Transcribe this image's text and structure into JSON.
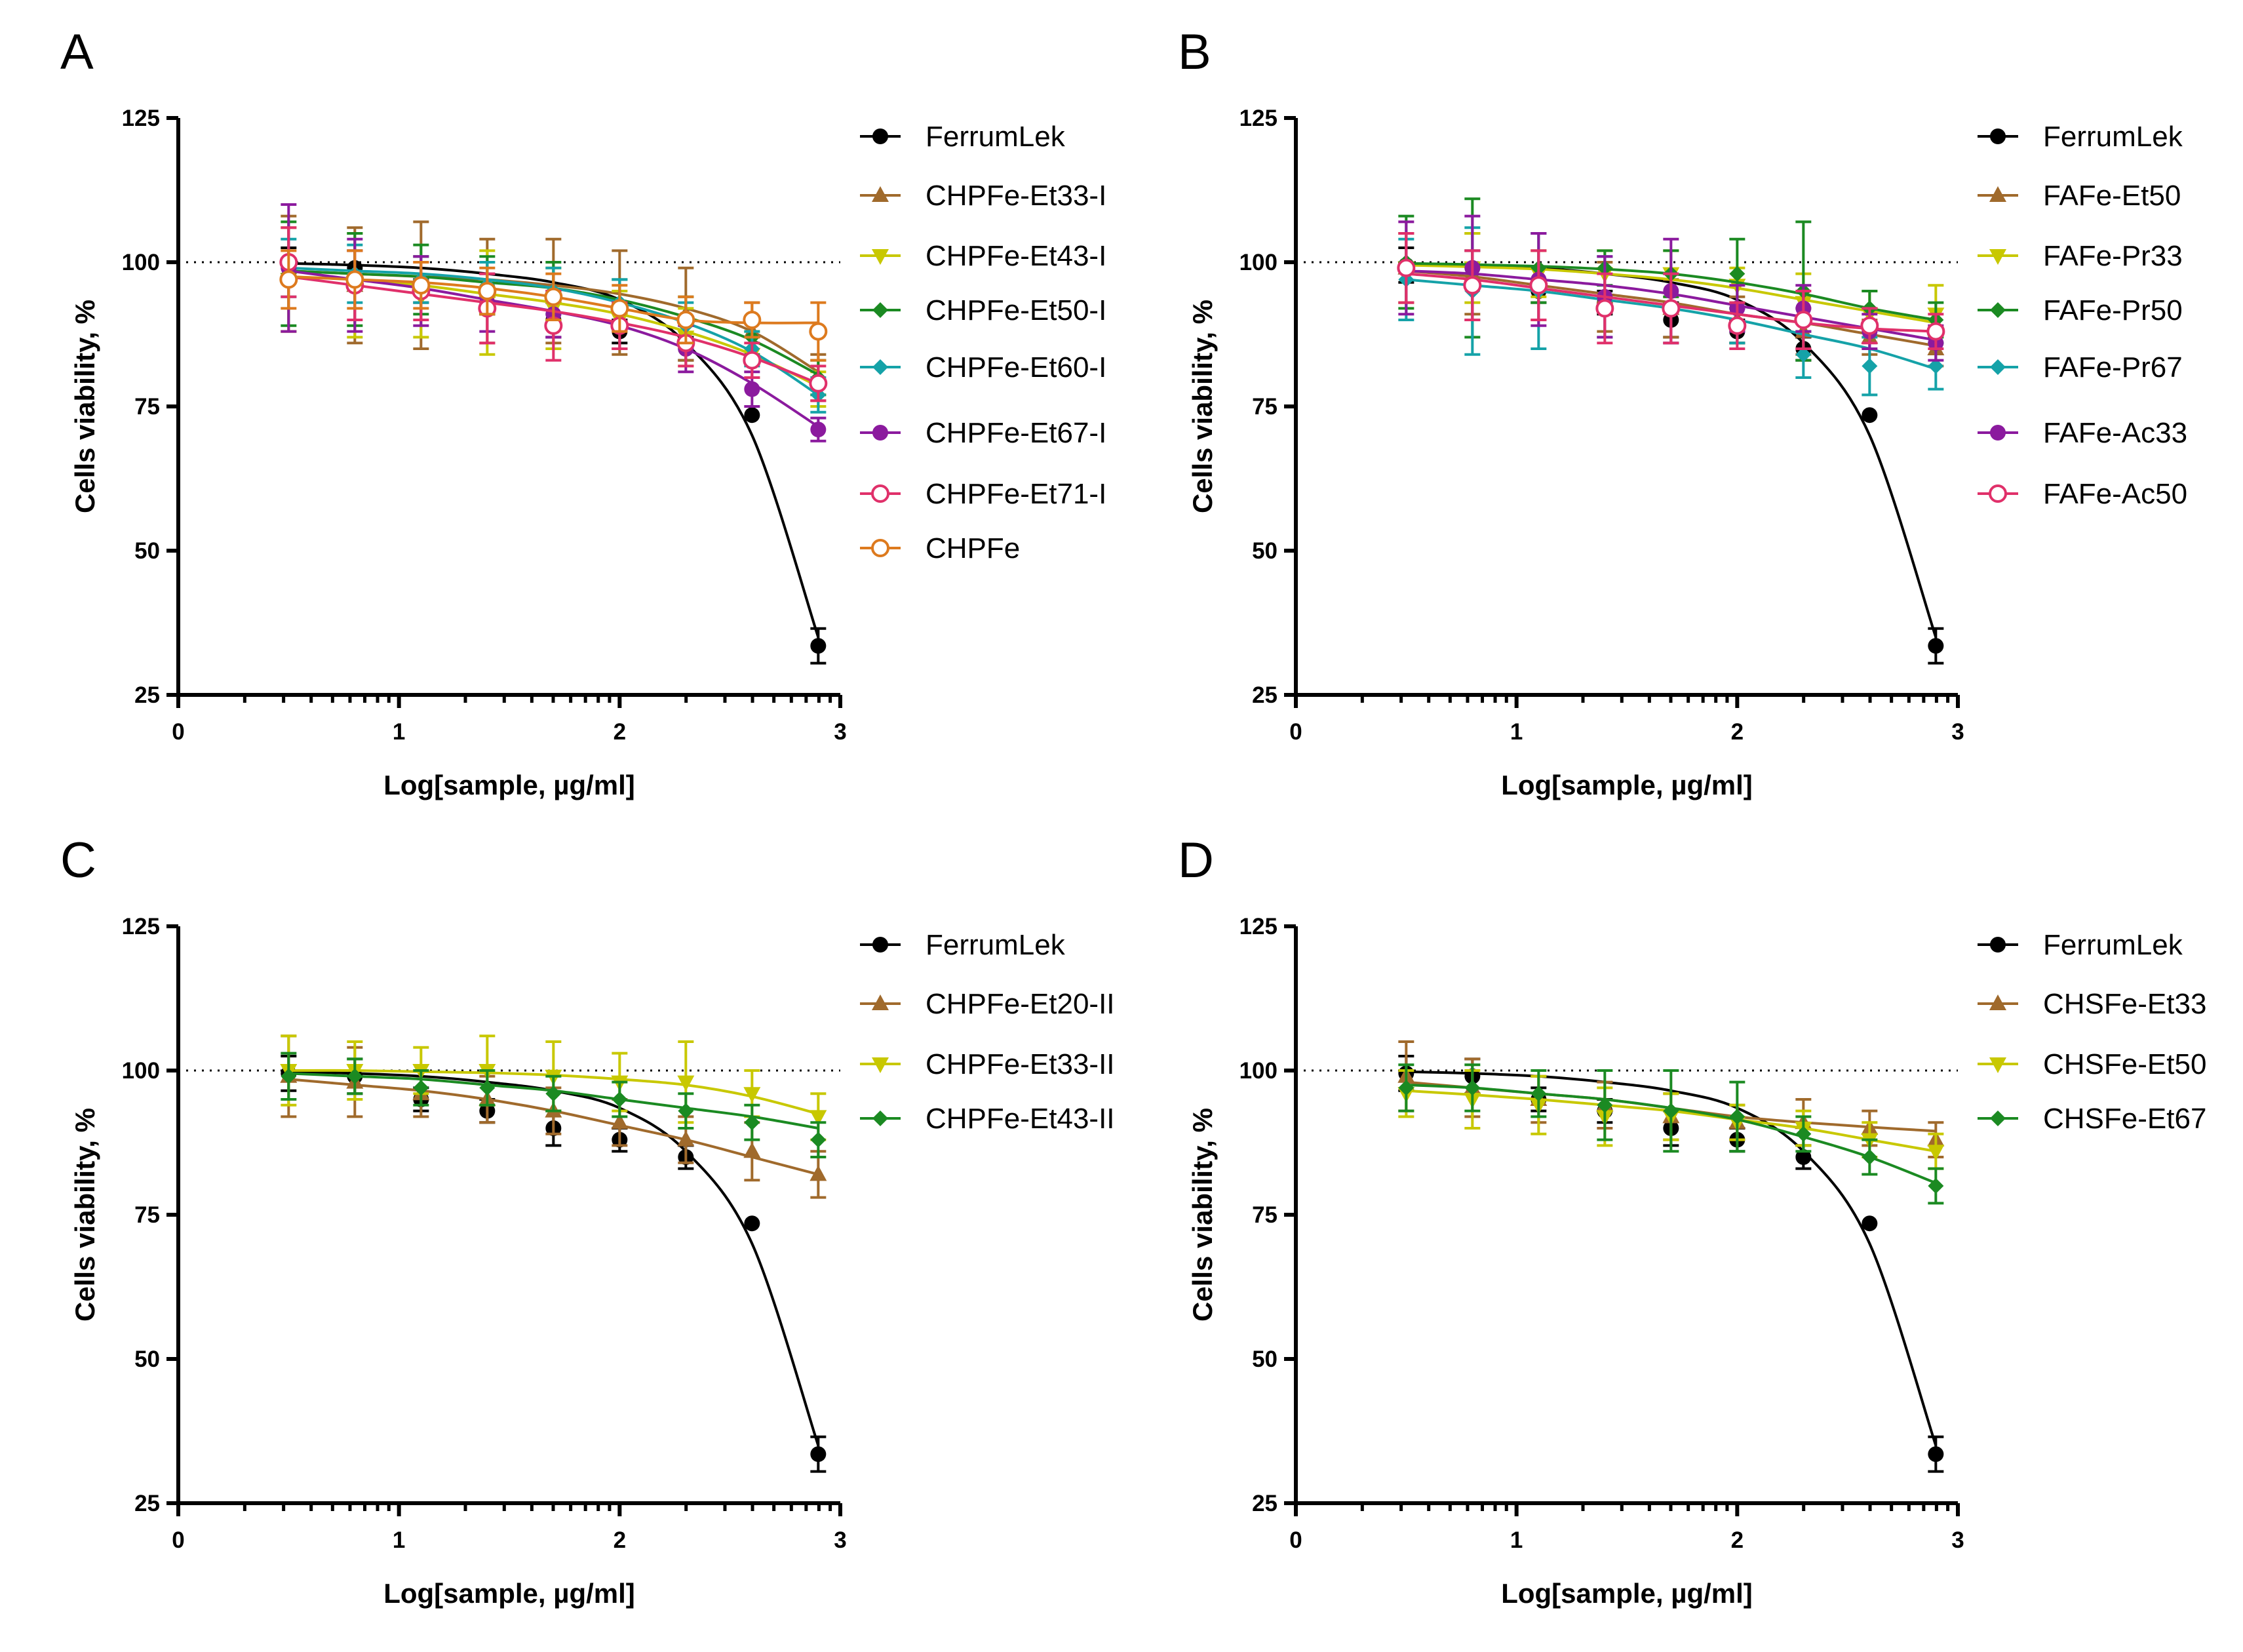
{
  "figure": {
    "background": "#ffffff",
    "panels": [
      {
        "letter": "A",
        "legend": [
          "FerrumLek",
          "CHPFe-Et33-I",
          "CHPFe-Et43-I",
          "CHPFe-Et50-I",
          "CHPFe-Et60-I",
          "CHPFe-Et67-I",
          "CHPFe-Et71-I",
          "CHPFe"
        ]
      },
      {
        "letter": "B",
        "legend": [
          "FerrumLek",
          "FAFe-Et50",
          "FAFe-Pr33",
          "FAFe-Pr50",
          "FAFe-Pr67",
          "FAFe-Ac33",
          "FAFe-Ac50"
        ]
      },
      {
        "letter": "C",
        "legend": [
          "FerrumLek",
          "CHPFe-Et20-II",
          "CHPFe-Et33-II",
          "CHPFe-Et43-II"
        ]
      },
      {
        "letter": "D",
        "legend": [
          "FerrumLek",
          "CHSFe-Et33",
          "CHSFe-Et50",
          "CHSFe-Et67"
        ]
      }
    ]
  },
  "chart_data": [
    {
      "type": "scatter",
      "panel": "A",
      "xlabel": "Log[sample, µg/ml]",
      "ylabel": "Cells viability, %",
      "xlim": [
        0,
        3
      ],
      "ylim": [
        25,
        125
      ],
      "xticks": [
        0,
        1,
        2,
        3
      ],
      "yticks": [
        25,
        50,
        75,
        100,
        125
      ],
      "reference_line": 100,
      "legend_position": "right",
      "x": [
        0.5,
        0.8,
        1.1,
        1.4,
        1.7,
        2.0,
        2.3,
        2.6,
        2.9
      ],
      "series": [
        {
          "name": "FerrumLek",
          "color": "#000000",
          "marker": "circle",
          "values": [
            99.5,
            99,
            95,
            93,
            90,
            88,
            85,
            73.5,
            33.5
          ],
          "errors": [
            3,
            3,
            2,
            2,
            3,
            2,
            2,
            0,
            3
          ],
          "curve": [
            99.8,
            99.5,
            99,
            98,
            96.5,
            93.5,
            86,
            70,
            35
          ]
        },
        {
          "name": "CHPFe-Et33-I",
          "color": "#a06a2c",
          "marker": "triangle-up",
          "values": [
            98,
            96,
            96,
            95,
            95,
            93,
            91,
            88,
            80
          ],
          "errors": [
            10,
            10,
            11,
            9,
            9,
            9,
            8,
            5,
            4
          ],
          "curve": [
            98.5,
            98,
            97.5,
            97,
            96,
            94.5,
            92,
            88,
            81
          ]
        },
        {
          "name": "CHPFe-Et43-I",
          "color": "#c8c800",
          "marker": "triangle-down",
          "values": [
            97,
            96,
            94,
            93,
            92,
            90,
            87,
            84,
            78
          ],
          "errors": [
            9,
            9,
            7,
            9,
            7,
            5,
            5,
            4,
            3
          ],
          "curve": [
            97.5,
            97,
            96,
            94.5,
            93,
            91,
            88,
            84,
            78.5
          ]
        },
        {
          "name": "CHPFe-Et50-I",
          "color": "#1b8a22",
          "marker": "diamond",
          "values": [
            98,
            97,
            97,
            96,
            95,
            93,
            90,
            87,
            80
          ],
          "errors": [
            9,
            8,
            6,
            5,
            5,
            4,
            4,
            3,
            3
          ],
          "curve": [
            98.5,
            98,
            97.5,
            96.5,
            95.5,
            93.5,
            90.5,
            86.5,
            80.5
          ]
        },
        {
          "name": "CHPFe-Et60-I",
          "color": "#15a2a8",
          "marker": "diamond",
          "values": [
            99,
            98,
            97,
            96,
            95,
            93,
            89,
            85,
            77
          ],
          "errors": [
            5,
            5,
            4,
            4,
            4,
            4,
            4,
            3,
            3
          ],
          "curve": [
            99,
            98.5,
            98,
            97,
            95.5,
            93,
            89.5,
            84.5,
            77
          ]
        },
        {
          "name": "CHPFe-Et67-I",
          "color": "#8b1a9e",
          "marker": "circle",
          "values": [
            99,
            96,
            95,
            93,
            91,
            89,
            85,
            78,
            71
          ],
          "errors": [
            11,
            8,
            6,
            5,
            4,
            4,
            4,
            3,
            2
          ],
          "curve": [
            98.5,
            97,
            95.5,
            93.5,
            91.5,
            89,
            85,
            79,
            71.5
          ]
        },
        {
          "name": "CHPFe-Et71-I",
          "color": "#e0306a",
          "marker": "circle-open",
          "values": [
            100,
            96,
            95,
            92,
            89,
            89,
            86,
            83,
            79
          ],
          "errors": [
            6,
            6,
            5,
            6,
            6,
            4,
            4,
            3,
            3
          ],
          "curve": [
            97.5,
            96,
            94.5,
            93,
            91.5,
            89.5,
            87,
            83.5,
            79
          ]
        },
        {
          "name": "CHPFe",
          "color": "#dd7a1e",
          "marker": "circle-open",
          "values": [
            97,
            97,
            96,
            95,
            94,
            92,
            90,
            90,
            88
          ],
          "errors": [
            5,
            5,
            4,
            4,
            4,
            4,
            4,
            3,
            5
          ],
          "curve": [
            97.5,
            97,
            96.5,
            95.5,
            94,
            92,
            90,
            89.5,
            89.5
          ]
        }
      ]
    },
    {
      "type": "scatter",
      "panel": "B",
      "xlabel": "Log[sample, µg/ml]",
      "ylabel": "Cells viability, %",
      "xlim": [
        0,
        3
      ],
      "ylim": [
        25,
        125
      ],
      "xticks": [
        0,
        1,
        2,
        3
      ],
      "yticks": [
        25,
        50,
        75,
        100,
        125
      ],
      "reference_line": 100,
      "legend_position": "right",
      "x": [
        0.5,
        0.8,
        1.1,
        1.4,
        1.7,
        2.0,
        2.3,
        2.6,
        2.9
      ],
      "series": [
        {
          "name": "FerrumLek",
          "color": "#000000",
          "marker": "circle",
          "values": [
            99.5,
            99,
            95,
            93,
            90,
            88,
            85,
            73.5,
            33.5
          ],
          "errors": [
            3,
            3,
            2,
            2,
            3,
            2,
            2,
            0,
            3
          ],
          "curve": [
            99.8,
            99.5,
            99,
            98,
            96.5,
            93.5,
            86,
            70,
            35
          ]
        },
        {
          "name": "FAFe-Et50",
          "color": "#a06a2c",
          "marker": "triangle-up",
          "values": [
            99,
            98,
            96,
            94,
            92,
            90,
            88,
            87,
            85
          ],
          "errors": [
            6,
            7,
            6,
            6,
            5,
            4,
            4,
            3,
            3
          ],
          "curve": [
            98.5,
            97.5,
            96,
            94.5,
            93,
            91,
            89.5,
            87.5,
            85.5
          ]
        },
        {
          "name": "FAFe-Pr33",
          "color": "#c8c800",
          "marker": "triangle-down",
          "values": [
            99,
            99,
            98,
            98,
            98,
            96,
            93,
            91,
            91
          ],
          "errors": [
            6,
            6,
            4,
            4,
            4,
            3,
            5,
            4,
            5
          ],
          "curve": [
            99.5,
            99.2,
            98.8,
            98,
            97,
            95.5,
            93.5,
            91.5,
            89.5
          ]
        },
        {
          "name": "FAFe-Pr50",
          "color": "#1b8a22",
          "marker": "diamond",
          "values": [
            100,
            99,
            99,
            99,
            98,
            98,
            95,
            92,
            90
          ],
          "errors": [
            8,
            12,
            6,
            3,
            4,
            6,
            12,
            3,
            3
          ],
          "curve": [
            99.8,
            99.6,
            99.3,
            98.8,
            98,
            96.5,
            94.5,
            92,
            90
          ]
        },
        {
          "name": "FAFe-Pr67",
          "color": "#15a2a8",
          "marker": "diamond",
          "values": [
            97,
            95,
            95,
            94,
            92,
            89,
            84,
            82,
            82
          ],
          "errors": [
            7,
            11,
            10,
            7,
            6,
            3,
            4,
            5,
            4
          ],
          "curve": [
            97,
            96,
            95,
            93.5,
            92,
            90,
            87.5,
            85,
            81.5
          ]
        },
        {
          "name": "FAFe-Ac33",
          "color": "#8b1a9e",
          "marker": "circle",
          "values": [
            99,
            99,
            97,
            94,
            95,
            92,
            92,
            88,
            86
          ],
          "errors": [
            8,
            9,
            8,
            7,
            9,
            4,
            4,
            3,
            3
          ],
          "curve": [
            98.5,
            98,
            97,
            96,
            94.5,
            92.5,
            90.5,
            88.5,
            86.5
          ]
        },
        {
          "name": "FAFe-Ac50",
          "color": "#e0306a",
          "marker": "circle-open",
          "values": [
            99,
            96,
            96,
            92,
            92,
            89,
            90,
            89,
            88
          ],
          "errors": [
            6,
            6,
            6,
            6,
            6,
            4,
            5,
            3,
            3
          ],
          "curve": [
            98,
            97,
            95.5,
            94,
            92.5,
            91,
            89.5,
            88.5,
            88
          ]
        }
      ]
    },
    {
      "type": "scatter",
      "panel": "C",
      "xlabel": "Log[sample, µg/ml]",
      "ylabel": "Cells viability, %",
      "xlim": [
        0,
        3
      ],
      "ylim": [
        25,
        125
      ],
      "xticks": [
        0,
        1,
        2,
        3
      ],
      "yticks": [
        25,
        50,
        75,
        100,
        125
      ],
      "reference_line": 100,
      "legend_position": "right",
      "x": [
        0.5,
        0.8,
        1.1,
        1.4,
        1.7,
        2.0,
        2.3,
        2.6,
        2.9
      ],
      "series": [
        {
          "name": "FerrumLek",
          "color": "#000000",
          "marker": "circle",
          "values": [
            99.5,
            99,
            95,
            93,
            90,
            88,
            85,
            73.5,
            33.5
          ],
          "errors": [
            3,
            3,
            2,
            2,
            3,
            2,
            2,
            0,
            3
          ],
          "curve": [
            99.8,
            99.5,
            99,
            98,
            96.5,
            93.5,
            86,
            70,
            35
          ]
        },
        {
          "name": "CHPFe-Et20-II",
          "color": "#a06a2c",
          "marker": "triangle-up",
          "values": [
            99,
            98,
            96,
            95,
            93,
            91,
            88,
            86,
            82
          ],
          "errors": [
            7,
            6,
            4,
            4,
            4,
            4,
            4,
            5,
            4
          ],
          "curve": [
            98.5,
            97.5,
            96.5,
            95,
            93,
            90.5,
            88,
            85,
            82
          ]
        },
        {
          "name": "CHPFe-Et33-II",
          "color": "#c8c800",
          "marker": "triangle-down",
          "values": [
            100,
            100,
            100,
            100,
            99,
            98,
            98,
            96,
            92
          ],
          "errors": [
            6,
            5,
            4,
            6,
            6,
            5,
            7,
            4,
            4
          ],
          "curve": [
            100,
            100,
            99.8,
            99.6,
            99.2,
            98.5,
            97.5,
            95.5,
            92.5
          ]
        },
        {
          "name": "CHPFe-Et43-II",
          "color": "#1b8a22",
          "marker": "diamond",
          "values": [
            99,
            99,
            97,
            97,
            96,
            95,
            93,
            91,
            88
          ],
          "errors": [
            4,
            3,
            3,
            3,
            3,
            3,
            3,
            3,
            3
          ],
          "curve": [
            99.5,
            99,
            98.5,
            97.5,
            96.5,
            95,
            93.5,
            92,
            90
          ]
        }
      ]
    },
    {
      "type": "scatter",
      "panel": "D",
      "xlabel": "Log[sample, µg/ml]",
      "ylabel": "Cells viability, %",
      "xlim": [
        0,
        3
      ],
      "ylim": [
        25,
        125
      ],
      "xticks": [
        0,
        1,
        2,
        3
      ],
      "yticks": [
        25,
        50,
        75,
        100,
        125
      ],
      "reference_line": 100,
      "legend_position": "right",
      "x": [
        0.5,
        0.8,
        1.1,
        1.4,
        1.7,
        2.0,
        2.3,
        2.6,
        2.9
      ],
      "series": [
        {
          "name": "FerrumLek",
          "color": "#000000",
          "marker": "circle",
          "values": [
            99.5,
            99,
            95,
            93,
            90,
            88,
            85,
            73.5,
            33.5
          ],
          "errors": [
            3,
            3,
            2,
            2,
            3,
            2,
            2,
            0,
            3
          ],
          "curve": [
            99.8,
            99.5,
            99,
            98,
            96.5,
            93.5,
            86,
            70,
            35
          ]
        },
        {
          "name": "CHSFe-Et33",
          "color": "#a06a2c",
          "marker": "triangle-up",
          "values": [
            99,
            97,
            95,
            94,
            92,
            91,
            91,
            90,
            88
          ],
          "errors": [
            6,
            5,
            4,
            4,
            4,
            3,
            4,
            3,
            3
          ],
          "curve": [
            98,
            97,
            96,
            95,
            93.5,
            92,
            91,
            90.2,
            89.5
          ]
        },
        {
          "name": "CHSFe-Et50",
          "color": "#c8c800",
          "marker": "triangle-down",
          "values": [
            96,
            95,
            94,
            92,
            92,
            91,
            90,
            88,
            86
          ],
          "errors": [
            4,
            5,
            5,
            5,
            4,
            3,
            3,
            3,
            3
          ],
          "curve": [
            96.5,
            95.8,
            95,
            94,
            93,
            91.5,
            90,
            88,
            86
          ]
        },
        {
          "name": "CHSFe-Et67",
          "color": "#1b8a22",
          "marker": "diamond",
          "values": [
            97,
            97,
            96,
            94,
            93,
            92,
            89,
            85,
            80
          ],
          "errors": [
            4,
            4,
            4,
            6,
            7,
            6,
            3,
            3,
            3
          ],
          "curve": [
            97.5,
            97,
            96,
            95,
            93.5,
            91.5,
            88.5,
            85,
            80.5
          ]
        }
      ]
    }
  ]
}
